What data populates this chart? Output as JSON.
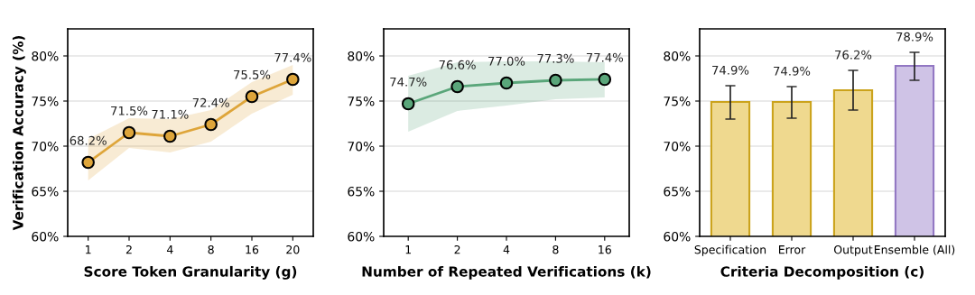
{
  "chart_data": [
    {
      "type": "line",
      "xlabel": "Score Token Granularity (g)",
      "ylabel": "Verification Accuracy (%)",
      "categories": [
        "1",
        "2",
        "4",
        "8",
        "16",
        "20"
      ],
      "series": [
        {
          "color": "#dea53a",
          "values": [
            68.2,
            71.5,
            71.1,
            72.4,
            75.5,
            77.4
          ],
          "lower": [
            66.2,
            69.8,
            69.3,
            70.5,
            73.6,
            75.7
          ],
          "upper": [
            70.8,
            73.1,
            73.0,
            74.0,
            77.1,
            79.0
          ],
          "value_labels": [
            "68.2%",
            "71.5%",
            "71.1%",
            "72.4%",
            "75.5%",
            "77.4%"
          ]
        }
      ],
      "ylim": [
        60,
        83
      ],
      "yticks": [
        {
          "value": 60,
          "label": "60%"
        },
        {
          "value": 65,
          "label": "65%"
        },
        {
          "value": 70,
          "label": "70%"
        },
        {
          "value": 75,
          "label": "75%"
        },
        {
          "value": 80,
          "label": "80%"
        }
      ],
      "grid": "y",
      "marker": "circle",
      "line_style": "solid"
    },
    {
      "type": "line",
      "xlabel": "Number of Repeated Verifications (k)",
      "categories": [
        "1",
        "2",
        "4",
        "8",
        "16"
      ],
      "series": [
        {
          "color": "#5aa67a",
          "values": [
            74.7,
            76.6,
            77.0,
            77.3,
            77.4
          ],
          "lower": [
            71.6,
            73.9,
            74.5,
            75.2,
            75.4
          ],
          "upper": [
            77.8,
            79.3,
            79.4,
            79.4,
            79.3
          ],
          "value_labels": [
            "74.7%",
            "76.6%",
            "77.0%",
            "77.3%",
            "77.4%"
          ]
        }
      ],
      "ylim": [
        60,
        83
      ],
      "yticks": [
        {
          "value": 60,
          "label": "60%"
        },
        {
          "value": 65,
          "label": "65%"
        },
        {
          "value": 70,
          "label": "70%"
        },
        {
          "value": 75,
          "label": "75%"
        },
        {
          "value": 80,
          "label": "80%"
        }
      ],
      "grid": "y",
      "marker": "circle",
      "line_style": "solid"
    },
    {
      "type": "bar",
      "xlabel": "Criteria Decomposition (c)",
      "categories": [
        "Specification",
        "Error",
        "Output",
        "Ensemble (All)"
      ],
      "values": [
        74.9,
        74.9,
        76.2,
        78.9
      ],
      "colors": [
        "#efd98f",
        "#efd98f",
        "#efd98f",
        "#cfc3e6"
      ],
      "errors": [
        [
          73.0,
          76.7
        ],
        [
          73.1,
          76.6
        ],
        [
          74.0,
          78.4
        ],
        [
          77.3,
          80.4
        ]
      ],
      "value_labels": [
        "74.9%",
        "74.9%",
        "76.2%",
        "78.9%"
      ],
      "ylim": [
        60,
        83
      ],
      "yticks": [
        {
          "value": 60,
          "label": "60%"
        },
        {
          "value": 65,
          "label": "65%"
        },
        {
          "value": 70,
          "label": "70%"
        },
        {
          "value": 75,
          "label": "75%"
        },
        {
          "value": 80,
          "label": "80%"
        }
      ],
      "grid": "y"
    }
  ]
}
